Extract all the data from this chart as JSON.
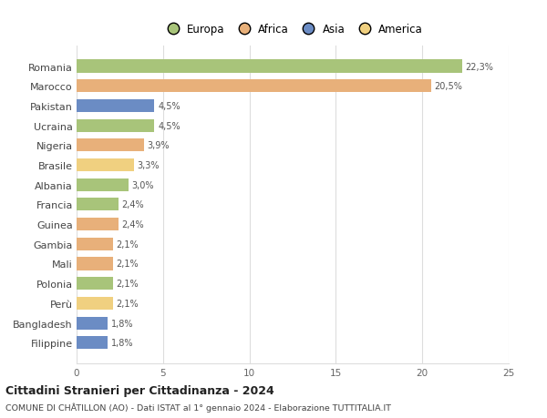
{
  "categories": [
    "Romania",
    "Marocco",
    "Pakistan",
    "Ucraina",
    "Nigeria",
    "Brasile",
    "Albania",
    "Francia",
    "Guinea",
    "Gambia",
    "Mali",
    "Polonia",
    "Perù",
    "Bangladesh",
    "Filippine"
  ],
  "values": [
    22.3,
    20.5,
    4.5,
    4.5,
    3.9,
    3.3,
    3.0,
    2.4,
    2.4,
    2.1,
    2.1,
    2.1,
    2.1,
    1.8,
    1.8
  ],
  "labels": [
    "22,3%",
    "20,5%",
    "4,5%",
    "4,5%",
    "3,9%",
    "3,3%",
    "3,0%",
    "2,4%",
    "2,4%",
    "2,1%",
    "2,1%",
    "2,1%",
    "2,1%",
    "1,8%",
    "1,8%"
  ],
  "colors": [
    "#a8c47a",
    "#e8b07a",
    "#6b8cc4",
    "#a8c47a",
    "#e8b07a",
    "#f0d080",
    "#a8c47a",
    "#a8c47a",
    "#e8b07a",
    "#e8b07a",
    "#e8b07a",
    "#a8c47a",
    "#f0d080",
    "#6b8cc4",
    "#6b8cc4"
  ],
  "continent_colors": {
    "Europa": "#a8c47a",
    "Africa": "#e8b07a",
    "Asia": "#6b8cc4",
    "America": "#f0d080"
  },
  "xlim": [
    0,
    25
  ],
  "xticks": [
    0,
    5,
    10,
    15,
    20,
    25
  ],
  "title": "Cittadini Stranieri per Cittadinanza - 2024",
  "subtitle": "COMUNE DI CHÂTILLON (AO) - Dati ISTAT al 1° gennaio 2024 - Elaborazione TUTTITALIA.IT",
  "bg_color": "#ffffff",
  "grid_color": "#dddddd",
  "bar_height": 0.65
}
